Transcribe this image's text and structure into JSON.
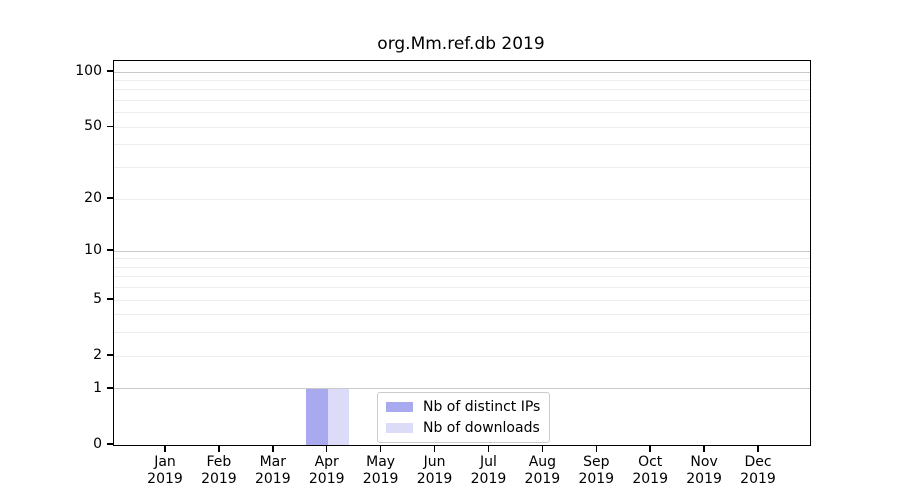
{
  "title": "org.Mm.ref.db 2019",
  "legend": {
    "items": [
      {
        "label": "Nb of distinct IPs",
        "color": "#a9a9f0"
      },
      {
        "label": "Nb of downloads",
        "color": "#dcdcf8"
      }
    ]
  },
  "axes": {
    "y_ticks": [
      {
        "value": 100,
        "label": "100"
      },
      {
        "value": 50,
        "label": "50"
      },
      {
        "value": 20,
        "label": "20"
      },
      {
        "value": 10,
        "label": "10"
      },
      {
        "value": 5,
        "label": "5"
      },
      {
        "value": 2,
        "label": "2"
      },
      {
        "value": 1,
        "label": "1"
      },
      {
        "value": 0,
        "label": "0"
      }
    ],
    "grid_major": [
      1,
      10,
      100
    ],
    "grid_minor": [
      2,
      3,
      4,
      5,
      6,
      7,
      8,
      9,
      20,
      30,
      40,
      50,
      60,
      70,
      80,
      90
    ],
    "x_ticks": [
      {
        "month": "Jan",
        "year": "2019"
      },
      {
        "month": "Feb",
        "year": "2019"
      },
      {
        "month": "Mar",
        "year": "2019"
      },
      {
        "month": "Apr",
        "year": "2019"
      },
      {
        "month": "May",
        "year": "2019"
      },
      {
        "month": "Jun",
        "year": "2019"
      },
      {
        "month": "Jul",
        "year": "2019"
      },
      {
        "month": "Aug",
        "year": "2019"
      },
      {
        "month": "Sep",
        "year": "2019"
      },
      {
        "month": "Oct",
        "year": "2019"
      },
      {
        "month": "Nov",
        "year": "2019"
      },
      {
        "month": "Dec",
        "year": "2019"
      }
    ]
  },
  "chart_data": {
    "type": "bar",
    "title": "org.Mm.ref.db 2019",
    "categories": [
      "Jan 2019",
      "Feb 2019",
      "Mar 2019",
      "Apr 2019",
      "May 2019",
      "Jun 2019",
      "Jul 2019",
      "Aug 2019",
      "Sep 2019",
      "Oct 2019",
      "Nov 2019",
      "Dec 2019"
    ],
    "series": [
      {
        "name": "Nb of distinct IPs",
        "color": "#a9a9f0",
        "values": [
          0,
          0,
          0,
          1,
          0,
          0,
          0,
          0,
          0,
          0,
          0,
          0
        ]
      },
      {
        "name": "Nb of downloads",
        "color": "#dcdcf8",
        "values": [
          0,
          0,
          0,
          1,
          0,
          0,
          0,
          0,
          0,
          0,
          0,
          0
        ]
      }
    ],
    "xlabel": "",
    "ylabel": "",
    "yscale": "log1p",
    "ylim": [
      0,
      115
    ],
    "y_tick_values": [
      0,
      1,
      2,
      5,
      10,
      20,
      50,
      100
    ],
    "grid": "horizontal",
    "legend_position": "lower center"
  }
}
